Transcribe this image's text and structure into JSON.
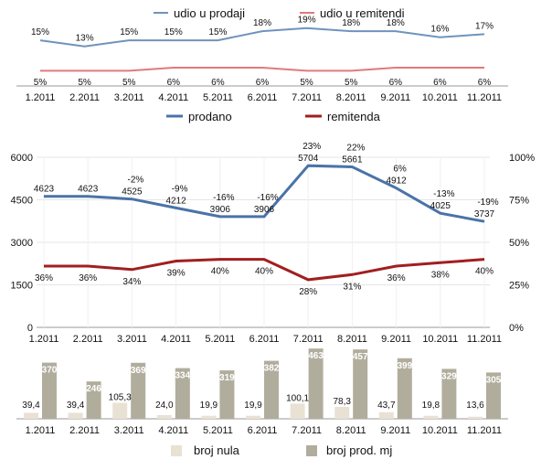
{
  "colors": {
    "udio_prodaji": "#6f93be",
    "udio_remitendi": "#e17a7a",
    "prodano": "#4a73a8",
    "remitenda": "#a11f1f",
    "broj_nula": "#e9e1d4",
    "broj_prod": "#b1ad9d",
    "grid": "#e6e6e6"
  },
  "chart_data": [
    {
      "type": "line",
      "categories": [
        "1.2011",
        "2.2011",
        "3.2011",
        "4.2011",
        "5.2011",
        "6.2011",
        "7.2011",
        "8.2011",
        "9.2011",
        "10.2011",
        "11.2011"
      ],
      "series": [
        {
          "name": "udio u prodaji",
          "values": [
            15,
            13,
            15,
            15,
            15,
            18,
            19,
            18,
            18,
            16,
            17
          ],
          "labels": [
            "15%",
            "13%",
            "15%",
            "15%",
            "15%",
            "18%",
            "19%",
            "18%",
            "18%",
            "16%",
            "17%"
          ]
        },
        {
          "name": "udio u remitendi",
          "values": [
            5,
            5,
            5,
            6,
            6,
            6,
            5,
            5,
            6,
            6,
            6
          ],
          "labels": [
            "5%",
            "5%",
            "5%",
            "6%",
            "6%",
            "6%",
            "5%",
            "5%",
            "6%",
            "6%",
            "6%"
          ]
        }
      ],
      "legend": [
        "udio u prodaji",
        "udio u remitendi"
      ],
      "ylim": [
        0,
        24
      ]
    },
    {
      "type": "line",
      "categories": [
        "1.2011",
        "2.2011",
        "3.2011",
        "4.2011",
        "5.2011",
        "6.2011",
        "7.2011",
        "8.2011",
        "9.2011",
        "10.2011",
        "11.2011"
      ],
      "series": [
        {
          "name": "prodano",
          "axis": "left",
          "values": [
            4623,
            4623,
            4525,
            4212,
            3906,
            3906,
            5704,
            5661,
            4912,
            4025,
            3737
          ],
          "labels": [
            "4623",
            "4623",
            "4525",
            "4212",
            "3906",
            "3906",
            "5704",
            "5661",
            "4912",
            "4025",
            "3737"
          ],
          "change_labels": [
            "",
            "",
            "-2%",
            "-9%",
            "-16%",
            "-16%",
            "23%",
            "22%",
            "6%",
            "-13%",
            "-19%"
          ]
        },
        {
          "name": "remitenda",
          "axis": "right",
          "values": [
            36,
            36,
            34,
            39,
            40,
            40,
            28,
            31,
            36,
            38,
            40
          ],
          "labels": [
            "36%",
            "36%",
            "34%",
            "39%",
            "40%",
            "40%",
            "28%",
            "31%",
            "36%",
            "38%",
            "40%"
          ]
        }
      ],
      "legend": [
        "prodano",
        "remitenda"
      ],
      "y_left": {
        "ticks": [
          "0",
          "1500",
          "3000",
          "4500",
          "6000"
        ],
        "range": [
          0,
          6000
        ]
      },
      "y_right": {
        "ticks": [
          "0%",
          "25%",
          "50%",
          "75%",
          "100%"
        ],
        "range": [
          0,
          100
        ]
      }
    },
    {
      "type": "bar",
      "categories": [
        "1.2011",
        "2.2011",
        "3.2011",
        "4.2011",
        "5.2011",
        "6.2011",
        "7.2011",
        "8.2011",
        "9.2011",
        "10.2011",
        "11.2011"
      ],
      "series": [
        {
          "name": "broj nula",
          "values": [
            39.4,
            39.4,
            105.3,
            24.0,
            19.9,
            19.9,
            100.1,
            78.3,
            43.7,
            19.8,
            13.6
          ],
          "labels": [
            "39,4",
            "39,4",
            "105,3",
            "24,0",
            "19,9",
            "19,9",
            "100,1",
            "78,3",
            "43,7",
            "19,8",
            "13,6"
          ]
        },
        {
          "name": "broj prod. mj",
          "values": [
            370,
            246,
            369,
            334,
            319,
            382,
            463,
            457,
            399,
            329,
            305
          ],
          "labels": [
            "370",
            "246",
            "369",
            "334",
            "319",
            "382",
            "463",
            "457",
            "399",
            "329",
            "305"
          ]
        }
      ],
      "legend": [
        "broj nula",
        "broj prod. mj"
      ],
      "ylim": [
        0,
        470
      ]
    }
  ]
}
